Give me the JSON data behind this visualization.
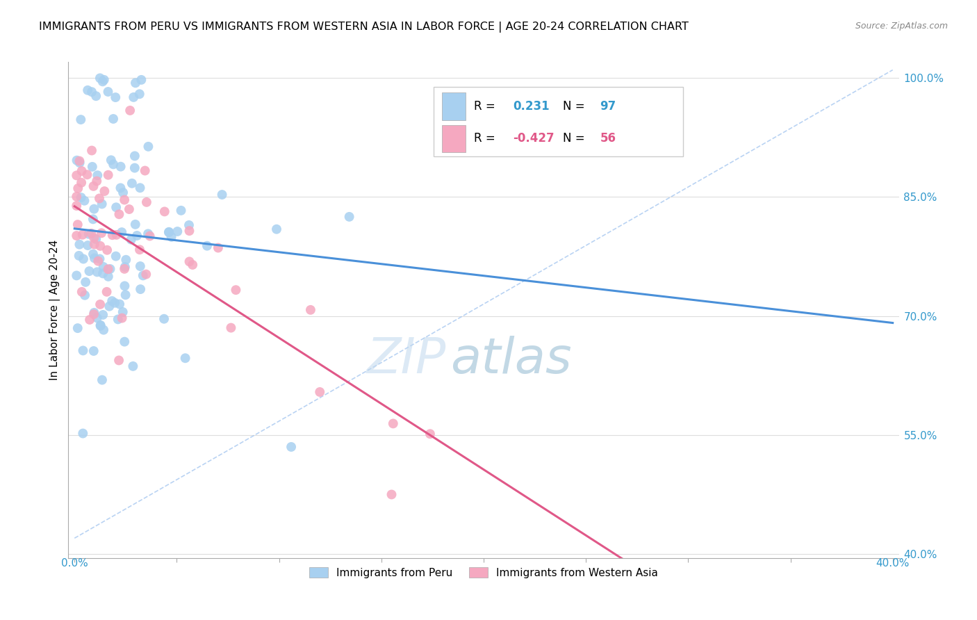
{
  "title": "IMMIGRANTS FROM PERU VS IMMIGRANTS FROM WESTERN ASIA IN LABOR FORCE | AGE 20-24 CORRELATION CHART",
  "source": "Source: ZipAtlas.com",
  "ylabel": "In Labor Force | Age 20-24",
  "right_yticklabels": [
    "100.0%",
    "85.0%",
    "70.0%",
    "55.0%",
    "40.0%"
  ],
  "right_ytick_vals": [
    100.0,
    85.0,
    70.0,
    55.0,
    40.0
  ],
  "legend_label1": "Immigrants from Peru",
  "legend_label2": "Immigrants from Western Asia",
  "R1": "0.231",
  "N1": "97",
  "R2": "-0.427",
  "N2": "56",
  "color_peru": "#A8D0F0",
  "color_asia": "#F5A8C0",
  "color_line_peru": "#4A90D9",
  "color_line_asia": "#E05888",
  "color_line_dashed": "#A8C8F0",
  "background_color": "#FFFFFF",
  "watermark": "ZIPatlas",
  "watermark_color_zip": "#C8DCF0",
  "watermark_color_atlas": "#90B8D8",
  "xmin": 0.0,
  "xmax": 40.0,
  "ymin": 40.0,
  "ymax": 102.0
}
